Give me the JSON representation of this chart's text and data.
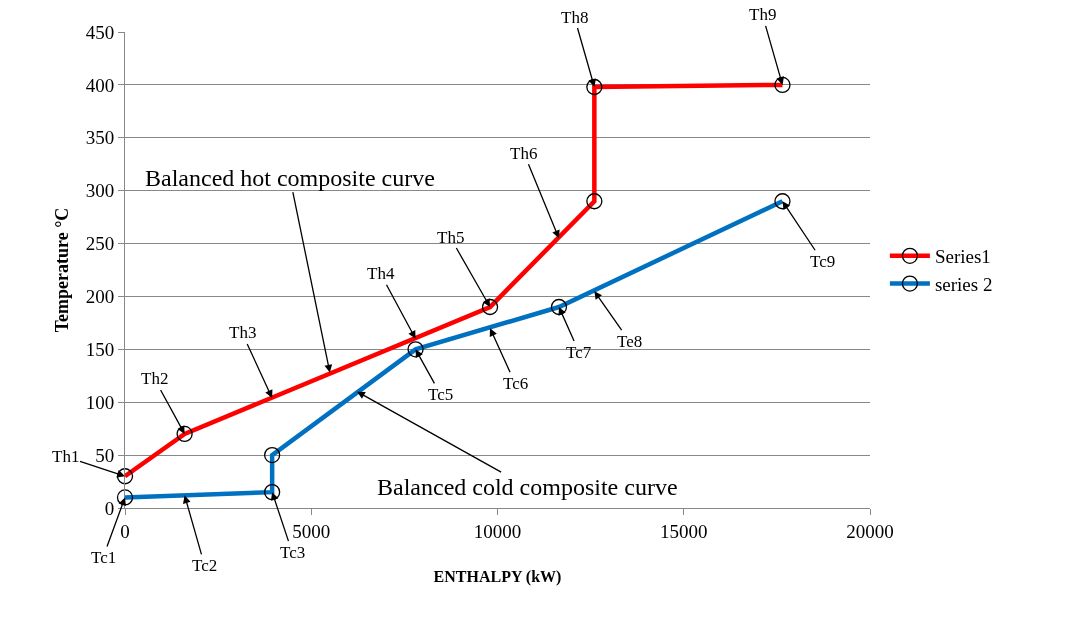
{
  "chart_data": {
    "type": "line",
    "xlabel": "ENTHALPY (kW)",
    "ylabel": "Temperature °C",
    "xlim": [
      0,
      20000
    ],
    "xticks": [
      0,
      5000,
      10000,
      15000,
      20000
    ],
    "ylim": [
      0,
      450
    ],
    "yticks": [
      0,
      50,
      100,
      150,
      200,
      250,
      300,
      350,
      400,
      450
    ],
    "grid": "y",
    "legend": "right",
    "marker": "circle",
    "line_style": "solid",
    "series": [
      {
        "name": "Series1",
        "color": "#ff0000",
        "x": [
          0,
          1600,
          9800,
          12600,
          12600,
          17650
        ],
        "values": [
          30,
          70,
          190,
          290,
          398,
          400
        ]
      },
      {
        "name": "series 2",
        "color": "#0070c0",
        "x": [
          0,
          3950,
          3950,
          7800,
          11650,
          17650
        ],
        "values": [
          10,
          15,
          50,
          150,
          190,
          290
        ]
      }
    ],
    "annotations": [
      {
        "text": "Th1",
        "x": 0,
        "y": 30
      },
      {
        "text": "Th2",
        "x": 1600,
        "y": 70
      },
      {
        "text": "Th3",
        "x": 3950,
        "y": 104
      },
      {
        "text": "Th4",
        "x": 7800,
        "y": 160
      },
      {
        "text": "Th5",
        "x": 9800,
        "y": 190
      },
      {
        "text": "Th6",
        "x": 11650,
        "y": 255
      },
      {
        "text": "Th8",
        "x": 12600,
        "y": 398
      },
      {
        "text": "Th9",
        "x": 17650,
        "y": 400
      },
      {
        "text": "Tc1",
        "x": 0,
        "y": 10
      },
      {
        "text": "Tc2",
        "x": 1600,
        "y": 12
      },
      {
        "text": "Tc3",
        "x": 3950,
        "y": 15
      },
      {
        "text": "Tc5",
        "x": 7800,
        "y": 150
      },
      {
        "text": "Tc6",
        "x": 9800,
        "y": 170
      },
      {
        "text": "Tc7",
        "x": 11650,
        "y": 190
      },
      {
        "text": "Te8",
        "x": 12600,
        "y": 205
      },
      {
        "text": "Tc9",
        "x": 17650,
        "y": 290
      },
      {
        "text": "Balanced hot composite curve",
        "x": 5500,
        "y": 128
      },
      {
        "text": "Balanced cold composite curve",
        "x": 6230,
        "y": 110
      }
    ]
  }
}
